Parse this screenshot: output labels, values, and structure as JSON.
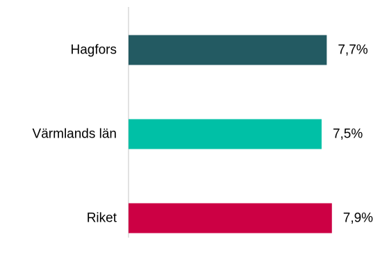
{
  "chart_data": {
    "type": "bar",
    "orientation": "horizontal",
    "categories": [
      "Hagfors",
      "Värmlands län",
      "Riket"
    ],
    "values": [
      7.7,
      7.5,
      7.9
    ],
    "value_labels": [
      "7,7%",
      "7,5%",
      "7,9%"
    ],
    "colors": [
      "#235a62",
      "#00c0a6",
      "#cc0044"
    ],
    "axis_color": "#d9d9d9",
    "xlim": [
      0,
      8.5
    ],
    "grid": false,
    "legend": "none"
  }
}
